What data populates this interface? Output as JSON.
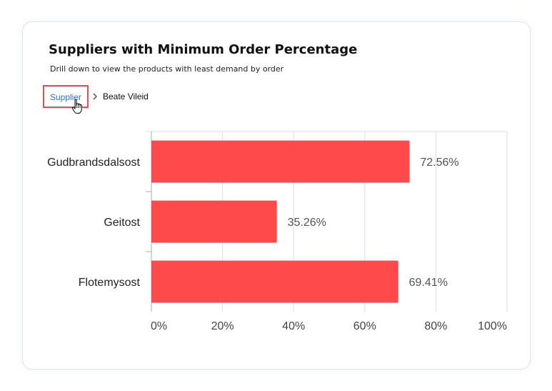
{
  "card": {
    "title": "Suppliers with Minimum Order Percentage",
    "subtitle": "Drill down to view the products with least demand by order"
  },
  "breadcrumb": {
    "root_label": "Supplier",
    "current_label": "Beate Vileid"
  },
  "icons": {
    "separator": "chevron-right-icon",
    "cursor": "hand-pointer-icon"
  },
  "chart_data": {
    "type": "bar",
    "orientation": "horizontal",
    "categories": [
      "Gudbrandsdalsost",
      "Geitost",
      "Flotemysost"
    ],
    "values": [
      72.56,
      35.26,
      69.41
    ],
    "value_labels": [
      "72.56%",
      "35.26%",
      "69.41%"
    ],
    "xlim": [
      0,
      100
    ],
    "xticks": [
      "0%",
      "20%",
      "40%",
      "60%",
      "80%",
      "100%"
    ],
    "grid": true,
    "bar_color": "#ff4a4c"
  }
}
